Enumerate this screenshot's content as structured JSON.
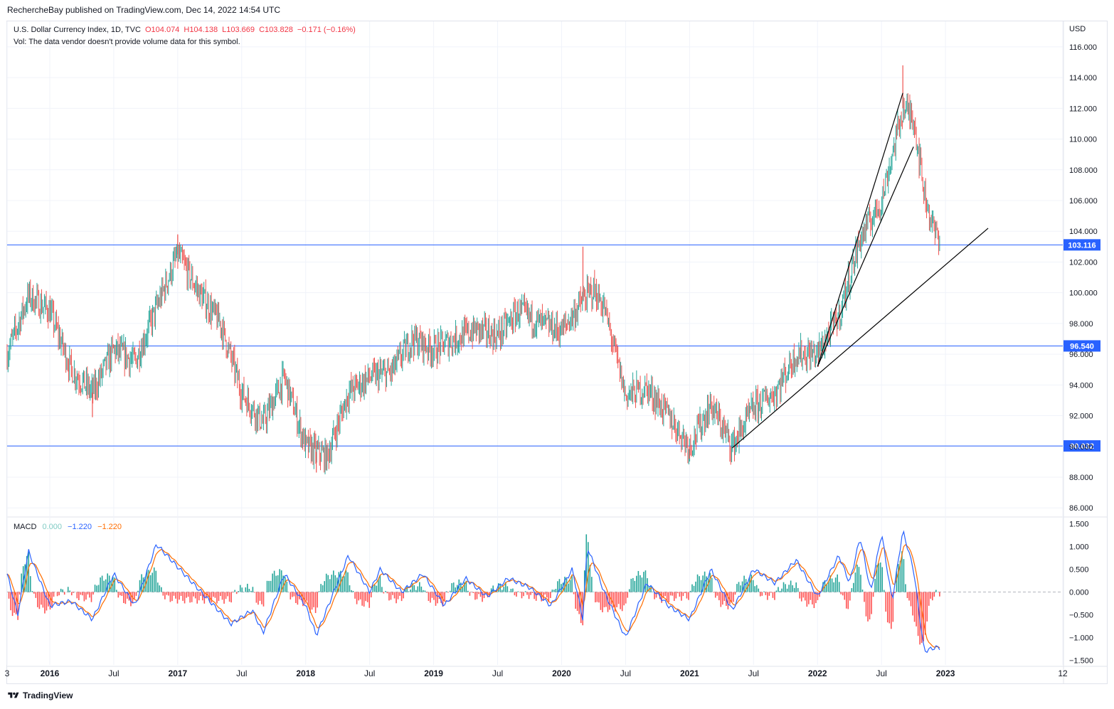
{
  "header": {
    "published_line": "RechercheBay published on TradingView.com, Dec 14, 2022 14:54 UTC"
  },
  "legend": {
    "symbol": "U.S. Dollar Currency Index, 1D, TVC",
    "open": "O104.074",
    "high": "H104.138",
    "low": "L103.669",
    "close": "C103.828",
    "change": "−0.171 (−0.16%)",
    "volume_note": "Vol: The data vendor doesn't provide volume data for this symbol."
  },
  "macd_legend": {
    "label": "MACD",
    "histogram": "0.000",
    "macd": "−1.220",
    "signal": "−1.220"
  },
  "footer": {
    "brand": "TradingView"
  },
  "colors": {
    "up": "#26a69a",
    "down": "#ef5350",
    "hline": "#2962ff",
    "macd_line": "#2962ff",
    "signal_line": "#ff6d00",
    "hist_up": "#26a69a",
    "hist_down": "#ff5252",
    "trendline": "#000000",
    "grid": "#f0f3fa",
    "axis_text": "#131722"
  },
  "chart_data": [
    {
      "type": "candlestick",
      "title": "U.S. Dollar Currency Index, 1D, TVC",
      "unit": "USD",
      "ylim": [
        85.5,
        117.2
      ],
      "y_ticks": [
        "116.000",
        "114.000",
        "112.000",
        "110.000",
        "108.000",
        "106.000",
        "104.000",
        "102.000",
        "100.000",
        "98.000",
        "96.000",
        "94.000",
        "92.000",
        "90.000",
        "88.000",
        "86.000"
      ],
      "x_ticks": [
        "3",
        "2016",
        "Jul",
        "2017",
        "Jul",
        "2018",
        "Jul",
        "2019",
        "Jul",
        "2020",
        "Jul",
        "2021",
        "Jul",
        "2022",
        "Jul",
        "2023",
        "12"
      ],
      "x_range": [
        "2015-09",
        "2023-12"
      ],
      "grid": true,
      "price_series": [
        {
          "date": "2015-09",
          "value": 96.0
        },
        {
          "date": "2015-11",
          "value": 99.8
        },
        {
          "date": "2016-01",
          "value": 98.8
        },
        {
          "date": "2016-03",
          "value": 95.0
        },
        {
          "date": "2016-05",
          "value": 93.5
        },
        {
          "date": "2016-07",
          "value": 96.3
        },
        {
          "date": "2016-09",
          "value": 95.5
        },
        {
          "date": "2016-11",
          "value": 99.0
        },
        {
          "date": "2017-01",
          "value": 102.5
        },
        {
          "date": "2017-03",
          "value": 100.0
        },
        {
          "date": "2017-05",
          "value": 98.0
        },
        {
          "date": "2017-07",
          "value": 93.5
        },
        {
          "date": "2017-09",
          "value": 91.5
        },
        {
          "date": "2017-11",
          "value": 94.5
        },
        {
          "date": "2018-01",
          "value": 90.0
        },
        {
          "date": "2018-03",
          "value": 89.3
        },
        {
          "date": "2018-05",
          "value": 93.5
        },
        {
          "date": "2018-07",
          "value": 94.5
        },
        {
          "date": "2018-09",
          "value": 94.8
        },
        {
          "date": "2018-11",
          "value": 97.0
        },
        {
          "date": "2019-01",
          "value": 96.3
        },
        {
          "date": "2019-03",
          "value": 97.0
        },
        {
          "date": "2019-05",
          "value": 97.6
        },
        {
          "date": "2019-07",
          "value": 97.2
        },
        {
          "date": "2019-09",
          "value": 98.8
        },
        {
          "date": "2019-11",
          "value": 98.0
        },
        {
          "date": "2020-01",
          "value": 97.5
        },
        {
          "date": "2020-03",
          "value": 99.5
        },
        {
          "date": "2020-04",
          "value": 100.2
        },
        {
          "date": "2020-05",
          "value": 99.0
        },
        {
          "date": "2020-07",
          "value": 93.3
        },
        {
          "date": "2020-09",
          "value": 93.8
        },
        {
          "date": "2020-11",
          "value": 92.0
        },
        {
          "date": "2021-01",
          "value": 90.0
        },
        {
          "date": "2021-03",
          "value": 92.7
        },
        {
          "date": "2021-05",
          "value": 90.0
        },
        {
          "date": "2021-07",
          "value": 92.5
        },
        {
          "date": "2021-09",
          "value": 93.5
        },
        {
          "date": "2021-11",
          "value": 96.0
        },
        {
          "date": "2022-01",
          "value": 96.0
        },
        {
          "date": "2022-03",
          "value": 98.5
        },
        {
          "date": "2022-05",
          "value": 103.5
        },
        {
          "date": "2022-07",
          "value": 106.0
        },
        {
          "date": "2022-09",
          "value": 112.0
        },
        {
          "date": "2022-10",
          "value": 111.5
        },
        {
          "date": "2022-11",
          "value": 106.5
        },
        {
          "date": "2022-12",
          "value": 103.8
        }
      ],
      "extremes": [
        {
          "date": "2016-05",
          "value": 91.9
        },
        {
          "date": "2017-01",
          "value": 103.8
        },
        {
          "date": "2018-02",
          "value": 88.3
        },
        {
          "date": "2020-03",
          "value": 103.0
        },
        {
          "date": "2021-01",
          "value": 89.2
        },
        {
          "date": "2022-09",
          "value": 114.8
        }
      ],
      "horizontal_levels": [
        {
          "value": 103.116,
          "label": "103.116"
        },
        {
          "value": 96.54,
          "label": "96.540"
        },
        {
          "value": 90.032,
          "label": "90.032"
        }
      ],
      "trendlines": [
        {
          "from": {
            "date": "2021-05",
            "value": 89.9
          },
          "to": {
            "date": "2023-05",
            "value": 104.2
          }
        },
        {
          "from": {
            "date": "2022-01",
            "value": 95.2
          },
          "to": {
            "date": "2022-10",
            "value": 109.5
          }
        },
        {
          "from": {
            "date": "2022-01",
            "value": 95.2
          },
          "to": {
            "date": "2022-09",
            "value": 113.0
          }
        }
      ]
    },
    {
      "type": "macd",
      "title": "MACD",
      "ylim": [
        -1.6,
        1.6
      ],
      "y_ticks": [
        "1.500",
        "1.000",
        "0.500",
        "0.000",
        "−0.500",
        "−1.000",
        "−1.500"
      ],
      "zero_line": true,
      "macd_series": [
        {
          "date": "2015-09",
          "value": 0.4
        },
        {
          "date": "2015-10",
          "value": -0.5
        },
        {
          "date": "2015-11",
          "value": 0.9
        },
        {
          "date": "2016-01",
          "value": -0.3
        },
        {
          "date": "2016-03",
          "value": -0.2
        },
        {
          "date": "2016-05",
          "value": -0.6
        },
        {
          "date": "2016-07",
          "value": 0.4
        },
        {
          "date": "2016-09",
          "value": -0.3
        },
        {
          "date": "2016-11",
          "value": 1.05
        },
        {
          "date": "2017-02",
          "value": 0.3
        },
        {
          "date": "2017-04",
          "value": -0.2
        },
        {
          "date": "2017-06",
          "value": -0.7
        },
        {
          "date": "2017-08",
          "value": -0.4
        },
        {
          "date": "2017-09",
          "value": -0.9
        },
        {
          "date": "2017-11",
          "value": 0.4
        },
        {
          "date": "2018-01",
          "value": -0.3
        },
        {
          "date": "2018-02",
          "value": -0.95
        },
        {
          "date": "2018-05",
          "value": 0.8
        },
        {
          "date": "2018-07",
          "value": 0.0
        },
        {
          "date": "2018-08",
          "value": 0.5
        },
        {
          "date": "2018-10",
          "value": 0.0
        },
        {
          "date": "2018-12",
          "value": 0.4
        },
        {
          "date": "2019-02",
          "value": -0.3
        },
        {
          "date": "2019-04",
          "value": 0.3
        },
        {
          "date": "2019-06",
          "value": -0.1
        },
        {
          "date": "2019-08",
          "value": 0.3
        },
        {
          "date": "2019-10",
          "value": 0.1
        },
        {
          "date": "2019-12",
          "value": -0.3
        },
        {
          "date": "2020-02",
          "value": 0.5
        },
        {
          "date": "2020-03",
          "value": -0.6
        },
        {
          "date": "2020-03",
          "value": 1.0
        },
        {
          "date": "2020-05",
          "value": 0.0
        },
        {
          "date": "2020-06",
          "value": -0.5
        },
        {
          "date": "2020-07",
          "value": -1.0
        },
        {
          "date": "2020-09",
          "value": 0.2
        },
        {
          "date": "2020-11",
          "value": -0.3
        },
        {
          "date": "2021-01",
          "value": -0.6
        },
        {
          "date": "2021-03",
          "value": 0.5
        },
        {
          "date": "2021-05",
          "value": -0.4
        },
        {
          "date": "2021-07",
          "value": 0.5
        },
        {
          "date": "2021-09",
          "value": 0.2
        },
        {
          "date": "2021-11",
          "value": 0.7
        },
        {
          "date": "2022-01",
          "value": -0.1
        },
        {
          "date": "2022-03",
          "value": 0.8
        },
        {
          "date": "2022-04",
          "value": 0.2
        },
        {
          "date": "2022-05",
          "value": 1.2
        },
        {
          "date": "2022-06",
          "value": 0.0
        },
        {
          "date": "2022-07",
          "value": 1.3
        },
        {
          "date": "2022-08",
          "value": -0.2
        },
        {
          "date": "2022-09",
          "value": 1.35
        },
        {
          "date": "2022-10",
          "value": 0.5
        },
        {
          "date": "2022-11",
          "value": -1.3
        },
        {
          "date": "2022-12",
          "value": -1.22
        }
      ]
    }
  ]
}
